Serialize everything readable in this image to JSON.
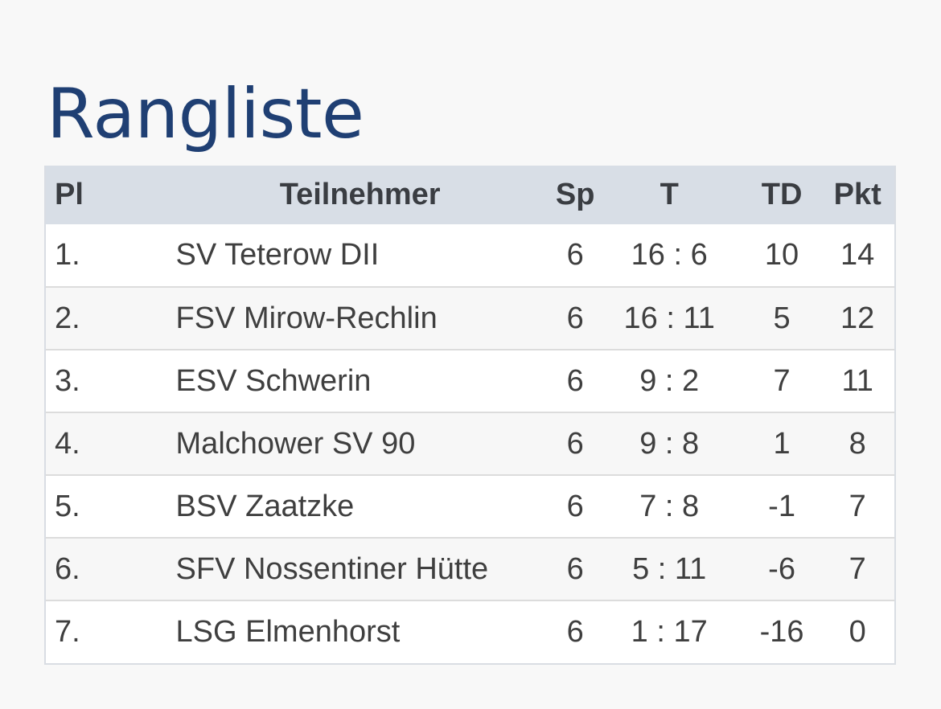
{
  "title": "Rangliste",
  "table": {
    "headers": {
      "pl": "Pl",
      "team": "Teilnehmer",
      "sp": "Sp",
      "t": "T",
      "td": "TD",
      "pkt": "Pkt"
    },
    "rows": [
      {
        "pl": "1.",
        "team": "SV Teterow DII",
        "sp": "6",
        "t": "16 : 6",
        "td": "10",
        "pkt": "14"
      },
      {
        "pl": "2.",
        "team": "FSV Mirow-Rechlin",
        "sp": "6",
        "t": "16 : 11",
        "td": "5",
        "pkt": "12"
      },
      {
        "pl": "3.",
        "team": "ESV Schwerin",
        "sp": "6",
        "t": "9 : 2",
        "td": "7",
        "pkt": "11"
      },
      {
        "pl": "4.",
        "team": "Malchower SV 90",
        "sp": "6",
        "t": "9 : 8",
        "td": "1",
        "pkt": "8"
      },
      {
        "pl": "5.",
        "team": "BSV Zaatzke",
        "sp": "6",
        "t": "7 : 8",
        "td": "-1",
        "pkt": "7"
      },
      {
        "pl": "6.",
        "team": "SFV Nossentiner Hütte",
        "sp": "6",
        "t": "5 : 11",
        "td": "-6",
        "pkt": "7"
      },
      {
        "pl": "7.",
        "team": "LSG Elmenhorst",
        "sp": "6",
        "t": "1 : 17",
        "td": "-16",
        "pkt": "0"
      }
    ]
  }
}
